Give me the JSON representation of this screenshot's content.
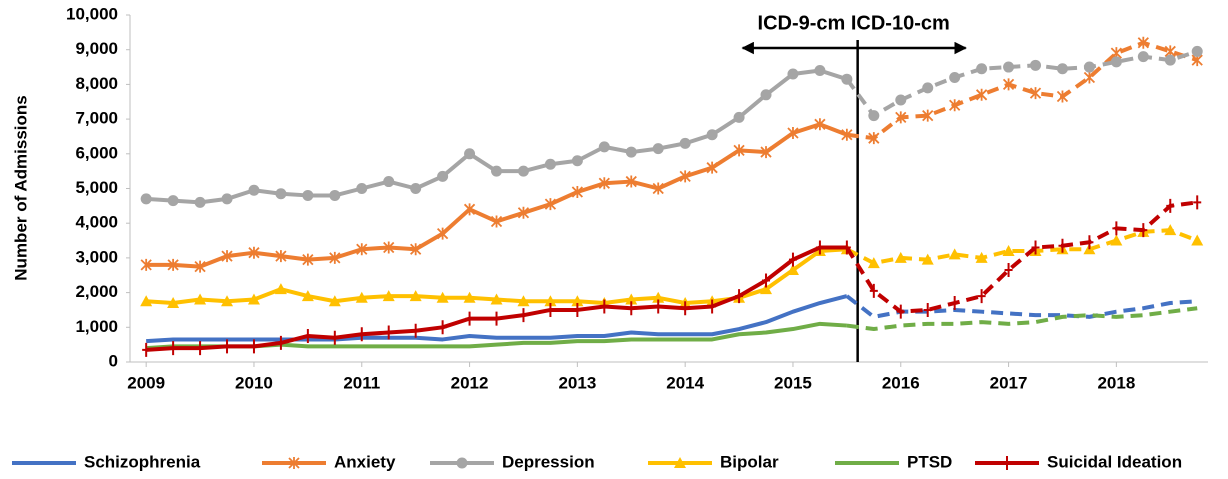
{
  "chart_data": {
    "type": "line",
    "y_label": "Number of Admissions",
    "annotation": "ICD-9-cm ICD-10-cm",
    "vline": 2015.6,
    "x": [
      2009,
      2009.25,
      2009.5,
      2009.75,
      2010,
      2010.25,
      2010.5,
      2010.75,
      2011,
      2011.25,
      2011.5,
      2011.75,
      2012,
      2012.25,
      2012.5,
      2012.75,
      2013,
      2013.25,
      2013.5,
      2013.75,
      2014,
      2014.25,
      2014.5,
      2014.75,
      2015,
      2015.25,
      2015.5,
      2015.75,
      2016,
      2016.25,
      2016.5,
      2016.75,
      2017,
      2017.25,
      2017.5,
      2017.75,
      2018,
      2018.25,
      2018.5,
      2018.75
    ],
    "xlim": [
      2008.85,
      2018.85
    ],
    "xticks": [
      2009,
      2010,
      2011,
      2012,
      2013,
      2014,
      2015,
      2016,
      2017,
      2018
    ],
    "ylim": [
      0,
      10000
    ],
    "yticks": [
      0,
      {
        "value": 1000,
        "label": "1,000"
      },
      {
        "value": 2000,
        "label": "2,000"
      },
      {
        "value": 3000,
        "label": "3,000"
      },
      {
        "value": 4000,
        "label": "4,000"
      },
      {
        "value": 5000,
        "label": "5,000"
      },
      {
        "value": 6000,
        "label": "6,000"
      },
      {
        "value": 7000,
        "label": "7,000"
      },
      {
        "value": 8000,
        "label": "8,000"
      },
      {
        "value": 9000,
        "label": "9,000"
      },
      {
        "value": 10000,
        "label": "10,000"
      }
    ],
    "grid": false,
    "legend": "bottom",
    "series": [
      {
        "name": "Schizophrenia",
        "color": "#4472c4",
        "marker": "none",
        "values": [
          600,
          650,
          650,
          650,
          650,
          650,
          650,
          650,
          700,
          700,
          700,
          650,
          750,
          700,
          700,
          700,
          750,
          750,
          850,
          800,
          800,
          800,
          950,
          1150,
          1450,
          1700,
          1900,
          1300,
          1450,
          1450,
          1500,
          1450,
          1400,
          1350,
          1350,
          1300,
          1450,
          1550,
          1700,
          1750
        ]
      },
      {
        "name": "Anxiety",
        "color": "#ed7d31",
        "marker": "asterisk",
        "values": [
          2800,
          2800,
          2750,
          3050,
          3150,
          3050,
          2950,
          3000,
          3250,
          3300,
          3250,
          3700,
          4400,
          4050,
          4300,
          4550,
          4900,
          5150,
          5200,
          5000,
          5350,
          5600,
          6100,
          6050,
          6600,
          6850,
          6550,
          6450,
          7050,
          7100,
          7400,
          7700,
          8000,
          7750,
          7650,
          8200,
          8900,
          9200,
          8950,
          8700
        ]
      },
      {
        "name": "Depression",
        "color": "#a5a5a5",
        "marker": "circle",
        "values": [
          4700,
          4650,
          4600,
          4700,
          4950,
          4850,
          4800,
          4800,
          5000,
          5200,
          5000,
          5350,
          6000,
          5500,
          5500,
          5700,
          5800,
          6200,
          6050,
          6150,
          6300,
          6550,
          7050,
          7700,
          8300,
          8400,
          8150,
          7100,
          7550,
          7900,
          8200,
          8450,
          8500,
          8550,
          8450,
          8500,
          8650,
          8800,
          8700,
          8950
        ]
      },
      {
        "name": "Bipolar",
        "color": "#ffc000",
        "marker": "triangle",
        "values": [
          1750,
          1700,
          1800,
          1750,
          1800,
          2100,
          1900,
          1750,
          1850,
          1900,
          1900,
          1850,
          1850,
          1800,
          1750,
          1750,
          1750,
          1700,
          1800,
          1850,
          1700,
          1750,
          1850,
          2100,
          2650,
          3200,
          3250,
          2850,
          3000,
          2950,
          3100,
          3000,
          3200,
          3200,
          3250,
          3250,
          3500,
          3750,
          3800,
          3500
        ]
      },
      {
        "name": "PTSD",
        "color": "#70ad47",
        "marker": "none",
        "values": [
          400,
          450,
          450,
          450,
          450,
          500,
          450,
          450,
          450,
          450,
          450,
          450,
          450,
          500,
          550,
          550,
          600,
          600,
          650,
          650,
          650,
          650,
          800,
          850,
          950,
          1100,
          1050,
          950,
          1050,
          1100,
          1100,
          1150,
          1100,
          1150,
          1300,
          1350,
          1300,
          1350,
          1450,
          1550
        ]
      },
      {
        "name": "Suicidal Ideation",
        "color": "#c00000",
        "marker": "plus",
        "values": [
          350,
          400,
          400,
          450,
          450,
          550,
          750,
          700,
          800,
          850,
          900,
          1000,
          1250,
          1250,
          1350,
          1500,
          1500,
          1600,
          1550,
          1600,
          1550,
          1600,
          1900,
          2350,
          2950,
          3300,
          3300,
          2050,
          1450,
          1500,
          1700,
          1900,
          2650,
          3300,
          3350,
          3450,
          3850,
          3800,
          4500,
          4600
        ]
      }
    ]
  }
}
